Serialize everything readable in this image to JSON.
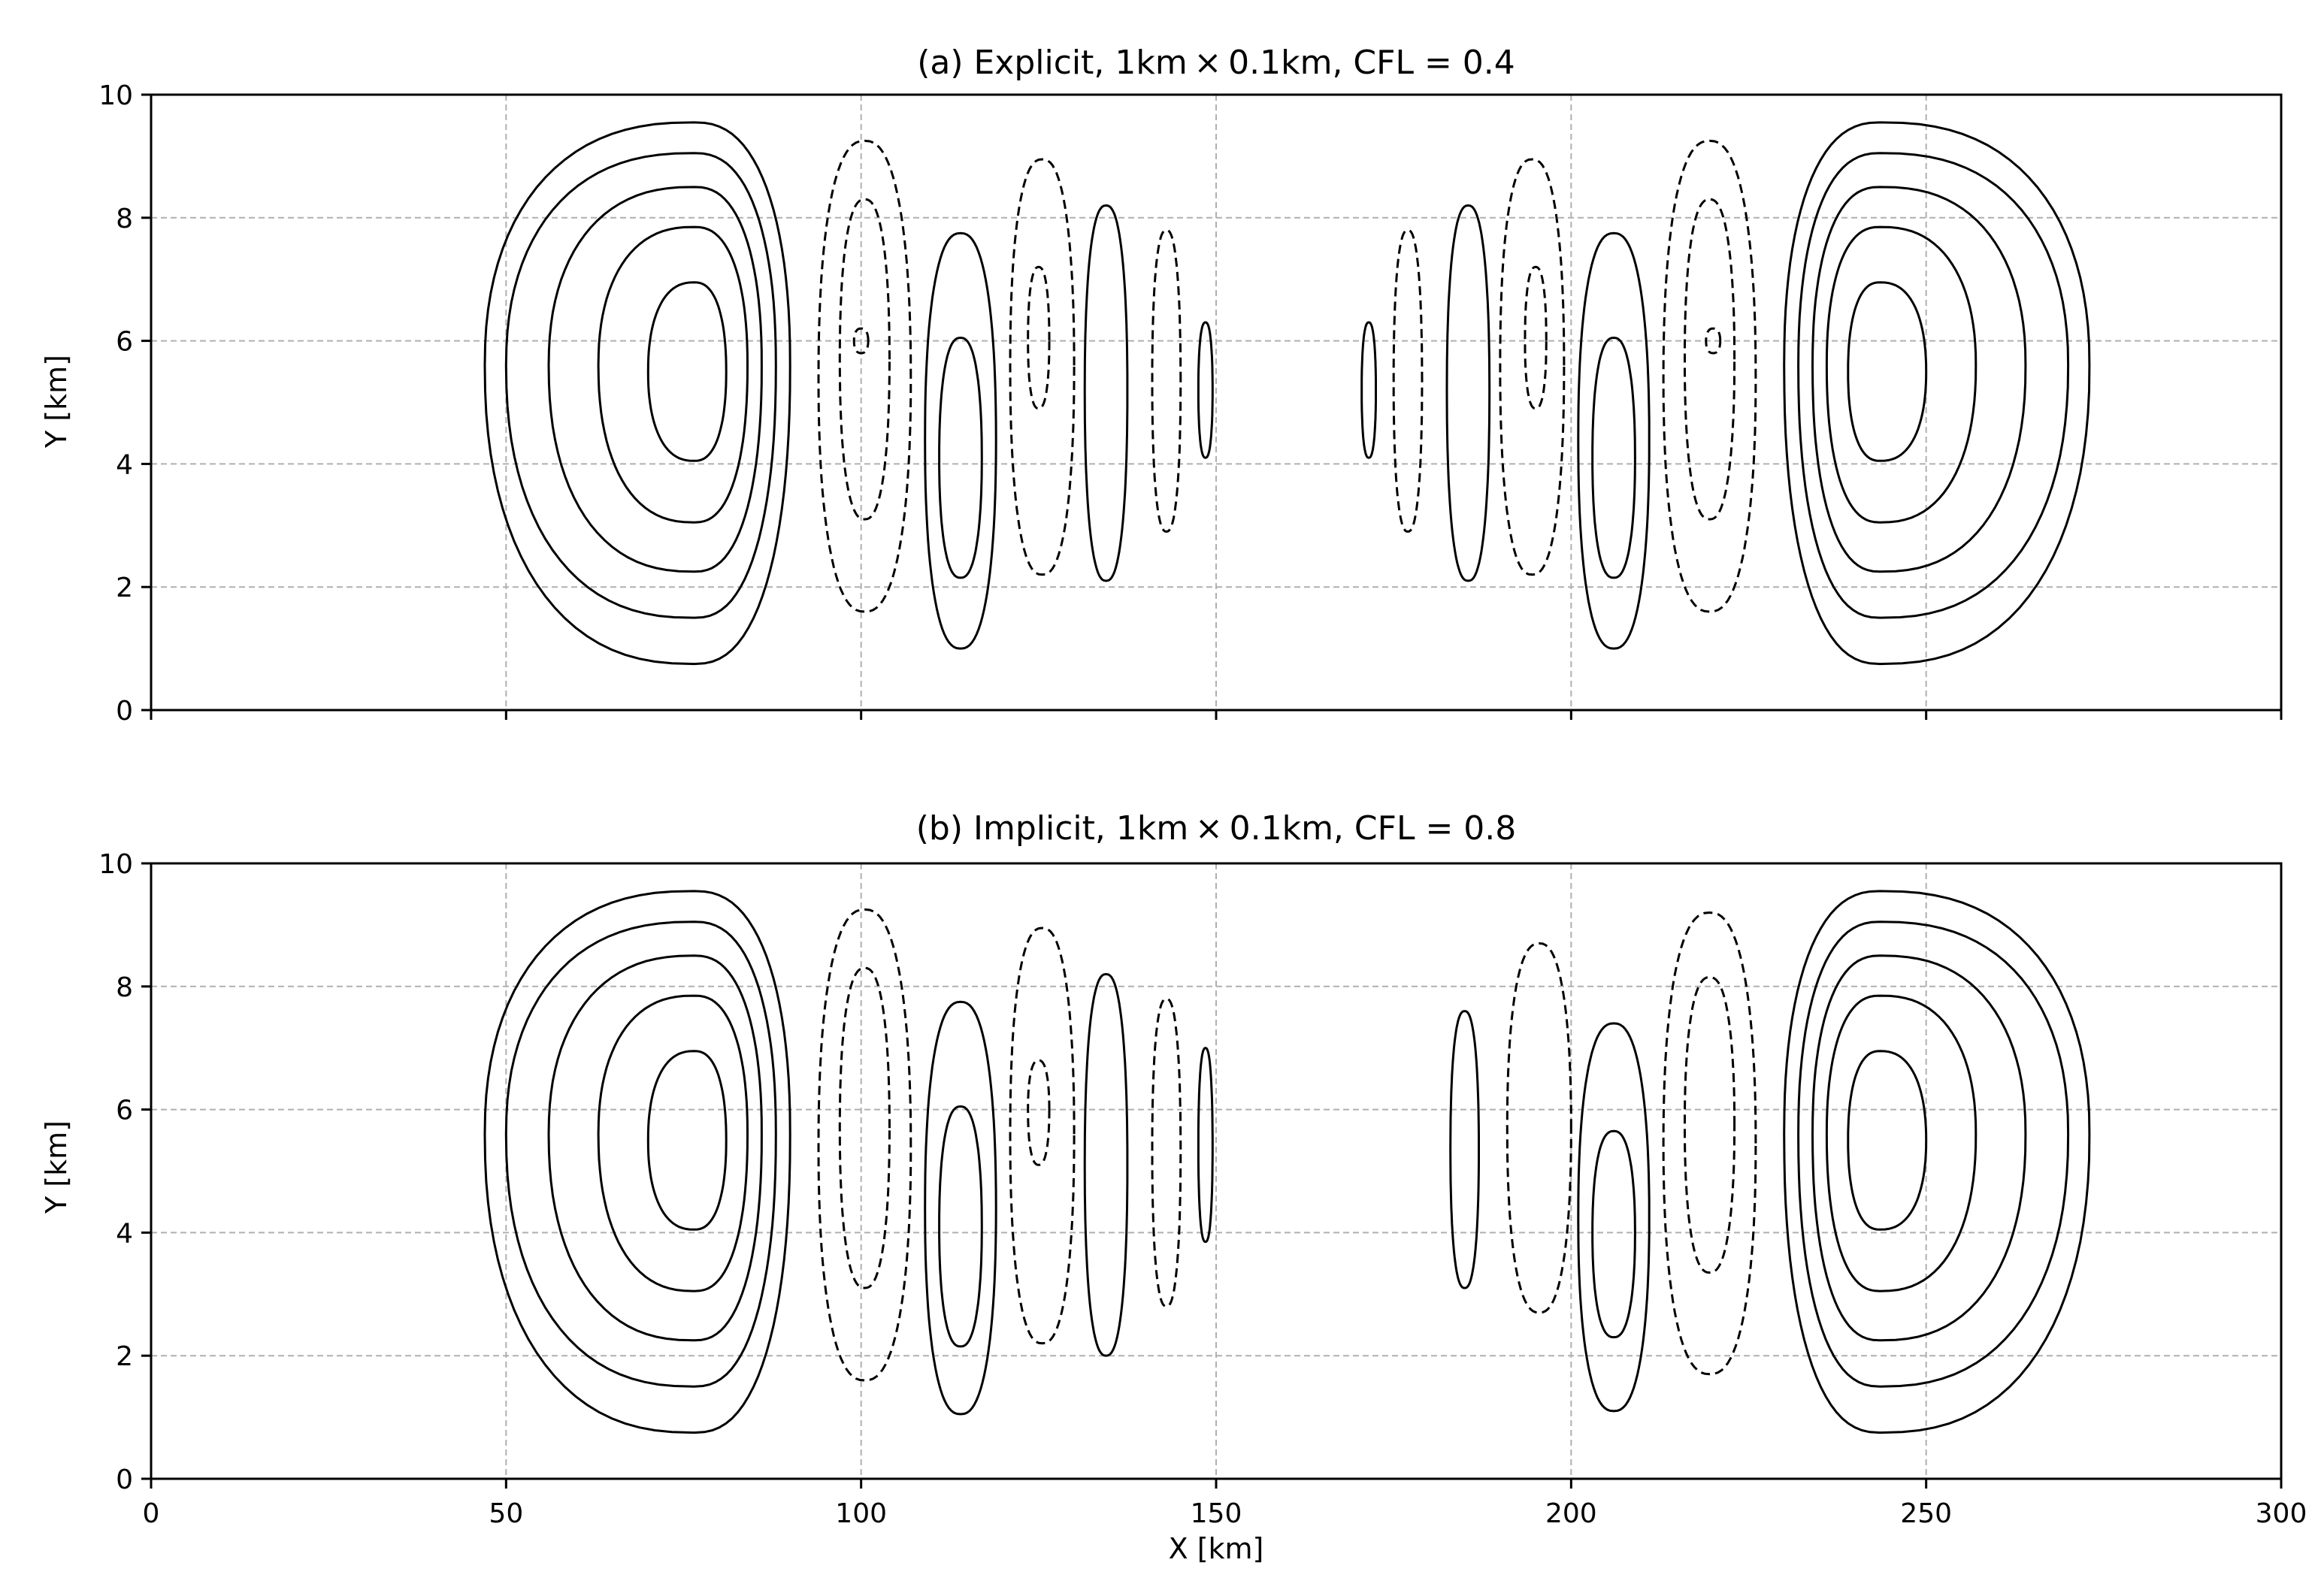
{
  "chart_data": [
    {
      "type": "contour",
      "title": "(a) Explicit, 1km × 0.1km, CFL = 0.4",
      "xlabel": "",
      "ylabel": "Y [km]",
      "xlim": [
        0,
        300
      ],
      "ylim": [
        0,
        10
      ],
      "xticks": [
        0,
        50,
        100,
        150,
        200,
        250,
        300
      ],
      "xticklabels_shown": false,
      "yticks": [
        0,
        2,
        4,
        6,
        8,
        10
      ],
      "grid": true,
      "contours": [
        {
          "sign": "positive",
          "x_center": 76.5,
          "y_center": 5.6,
          "x_range": [
            47,
            90
          ],
          "y_range": [
            0.75,
            9.55
          ]
        },
        {
          "sign": "positive",
          "x_center": 76.5,
          "y_center": 5.6,
          "x_range": [
            50,
            88
          ],
          "y_range": [
            1.5,
            9.05
          ]
        },
        {
          "sign": "positive",
          "x_center": 76.5,
          "y_center": 5.6,
          "x_range": [
            56,
            86
          ],
          "y_range": [
            2.25,
            8.5
          ]
        },
        {
          "sign": "positive",
          "x_center": 76.5,
          "y_center": 5.6,
          "x_range": [
            63,
            84
          ],
          "y_range": [
            3.05,
            7.85
          ]
        },
        {
          "sign": "positive",
          "x_center": 76.5,
          "y_center": 5.5,
          "x_range": [
            70,
            81
          ],
          "y_range": [
            4.05,
            6.95
          ]
        },
        {
          "sign": "negative",
          "x_center": 100.5,
          "y_center": 5.4,
          "x_range": [
            94,
            107
          ],
          "y_range": [
            1.6,
            9.25
          ]
        },
        {
          "sign": "negative",
          "x_center": 100.5,
          "y_center": 5.7,
          "x_range": [
            97,
            104
          ],
          "y_range": [
            3.1,
            8.3
          ]
        },
        {
          "sign": "negative",
          "x_center": 100,
          "y_center": 6.0,
          "x_range": [
            99,
            101
          ],
          "y_range": [
            5.8,
            6.2
          ]
        },
        {
          "sign": "positive",
          "x_center": 114,
          "y_center": 4.4,
          "x_range": [
            109,
            119
          ],
          "y_range": [
            1.0,
            7.75
          ]
        },
        {
          "sign": "positive",
          "x_center": 114,
          "y_center": 4.1,
          "x_range": [
            111,
            117
          ],
          "y_range": [
            2.15,
            6.05
          ]
        },
        {
          "sign": "negative",
          "x_center": 125.5,
          "y_center": 5.6,
          "x_range": [
            121,
            130
          ],
          "y_range": [
            2.2,
            8.95
          ]
        },
        {
          "sign": "negative",
          "x_center": 125,
          "y_center": 6.0,
          "x_range": [
            123.5,
            126.5
          ],
          "y_range": [
            4.9,
            7.2
          ]
        },
        {
          "sign": "positive",
          "x_center": 134.5,
          "y_center": 5.2,
          "x_range": [
            131.5,
            137.5
          ],
          "y_range": [
            2.1,
            8.2
          ]
        },
        {
          "sign": "negative",
          "x_center": 143,
          "y_center": 5.35,
          "x_range": [
            141,
            145
          ],
          "y_range": [
            2.9,
            7.8
          ]
        },
        {
          "sign": "positive",
          "x_center": 148.5,
          "y_center": 5.2,
          "x_range": [
            147.5,
            149.5
          ],
          "y_range": [
            4.1,
            6.3
          ]
        },
        {
          "sign": "positive",
          "x_center": 171.5,
          "y_center": 5.2,
          "x_range": [
            170.5,
            172.5
          ],
          "y_range": [
            4.1,
            6.3
          ]
        },
        {
          "sign": "negative",
          "x_center": 177,
          "y_center": 5.35,
          "x_range": [
            175,
            179
          ],
          "y_range": [
            2.9,
            7.8
          ]
        },
        {
          "sign": "positive",
          "x_center": 185.5,
          "y_center": 5.2,
          "x_range": [
            182.5,
            188.5
          ],
          "y_range": [
            2.1,
            8.2
          ]
        },
        {
          "sign": "negative",
          "x_center": 194.5,
          "y_center": 5.6,
          "x_range": [
            190,
            199
          ],
          "y_range": [
            2.2,
            8.95
          ]
        },
        {
          "sign": "negative",
          "x_center": 195,
          "y_center": 6.0,
          "x_range": [
            193.5,
            196.5
          ],
          "y_range": [
            4.9,
            7.2
          ]
        },
        {
          "sign": "positive",
          "x_center": 206,
          "y_center": 4.4,
          "x_range": [
            201,
            211
          ],
          "y_range": [
            1.0,
            7.75
          ]
        },
        {
          "sign": "positive",
          "x_center": 206,
          "y_center": 4.1,
          "x_range": [
            203,
            209
          ],
          "y_range": [
            2.15,
            6.05
          ]
        },
        {
          "sign": "negative",
          "x_center": 219.5,
          "y_center": 5.4,
          "x_range": [
            213,
            226
          ],
          "y_range": [
            1.6,
            9.25
          ]
        },
        {
          "sign": "negative",
          "x_center": 219.5,
          "y_center": 5.7,
          "x_range": [
            216,
            223
          ],
          "y_range": [
            3.1,
            8.3
          ]
        },
        {
          "sign": "negative",
          "x_center": 220,
          "y_center": 6.0,
          "x_range": [
            219,
            221
          ],
          "y_range": [
            5.8,
            6.2
          ]
        },
        {
          "sign": "positive",
          "x_center": 243.5,
          "y_center": 5.6,
          "x_range": [
            230,
            273
          ],
          "y_range": [
            0.75,
            9.55
          ]
        },
        {
          "sign": "positive",
          "x_center": 243.5,
          "y_center": 5.6,
          "x_range": [
            232,
            270
          ],
          "y_range": [
            1.5,
            9.05
          ]
        },
        {
          "sign": "positive",
          "x_center": 243.5,
          "y_center": 5.6,
          "x_range": [
            234,
            264
          ],
          "y_range": [
            2.25,
            8.5
          ]
        },
        {
          "sign": "positive",
          "x_center": 243.5,
          "y_center": 5.6,
          "x_range": [
            236,
            257
          ],
          "y_range": [
            3.05,
            7.85
          ]
        },
        {
          "sign": "positive",
          "x_center": 243.5,
          "y_center": 5.5,
          "x_range": [
            239,
            250
          ],
          "y_range": [
            4.05,
            6.95
          ]
        }
      ]
    },
    {
      "type": "contour",
      "title": "(b) Implicit, 1km × 0.1km, CFL = 0.8",
      "xlabel": "X [km]",
      "ylabel": "Y [km]",
      "xlim": [
        0,
        300
      ],
      "ylim": [
        0,
        10
      ],
      "xticks": [
        0,
        50,
        100,
        150,
        200,
        250,
        300
      ],
      "xticklabels_shown": true,
      "yticks": [
        0,
        2,
        4,
        6,
        8,
        10
      ],
      "grid": true,
      "contours": [
        {
          "sign": "positive",
          "x_center": 76.5,
          "y_center": 5.6,
          "x_range": [
            47,
            90
          ],
          "y_range": [
            0.75,
            9.55
          ]
        },
        {
          "sign": "positive",
          "x_center": 76.5,
          "y_center": 5.6,
          "x_range": [
            50,
            88
          ],
          "y_range": [
            1.5,
            9.05
          ]
        },
        {
          "sign": "positive",
          "x_center": 76.5,
          "y_center": 5.6,
          "x_range": [
            56,
            86
          ],
          "y_range": [
            2.25,
            8.5
          ]
        },
        {
          "sign": "positive",
          "x_center": 76.5,
          "y_center": 5.6,
          "x_range": [
            63,
            84
          ],
          "y_range": [
            3.05,
            7.85
          ]
        },
        {
          "sign": "positive",
          "x_center": 76.5,
          "y_center": 5.5,
          "x_range": [
            70,
            81
          ],
          "y_range": [
            4.05,
            6.95
          ]
        },
        {
          "sign": "negative",
          "x_center": 100.5,
          "y_center": 5.4,
          "x_range": [
            94,
            107
          ],
          "y_range": [
            1.6,
            9.25
          ]
        },
        {
          "sign": "negative",
          "x_center": 100.5,
          "y_center": 5.7,
          "x_range": [
            97,
            104
          ],
          "y_range": [
            3.1,
            8.3
          ]
        },
        {
          "sign": "positive",
          "x_center": 114,
          "y_center": 4.4,
          "x_range": [
            109,
            119
          ],
          "y_range": [
            1.05,
            7.75
          ]
        },
        {
          "sign": "positive",
          "x_center": 114,
          "y_center": 4.1,
          "x_range": [
            111,
            117
          ],
          "y_range": [
            2.15,
            6.05
          ]
        },
        {
          "sign": "negative",
          "x_center": 125.5,
          "y_center": 5.6,
          "x_range": [
            121,
            130
          ],
          "y_range": [
            2.2,
            8.95
          ]
        },
        {
          "sign": "negative",
          "x_center": 125,
          "y_center": 6.0,
          "x_range": [
            123.5,
            126.5
          ],
          "y_range": [
            5.1,
            6.8
          ]
        },
        {
          "sign": "positive",
          "x_center": 134.5,
          "y_center": 5.1,
          "x_range": [
            131.5,
            137.5
          ],
          "y_range": [
            2.0,
            8.2
          ]
        },
        {
          "sign": "negative",
          "x_center": 143,
          "y_center": 5.35,
          "x_range": [
            141,
            145
          ],
          "y_range": [
            2.8,
            7.8
          ]
        },
        {
          "sign": "positive",
          "x_center": 148.5,
          "y_center": 5.4,
          "x_range": [
            147.5,
            149.5
          ],
          "y_range": [
            3.85,
            7.0
          ]
        },
        {
          "sign": "positive",
          "x_center": 185,
          "y_center": 5.35,
          "x_range": [
            183,
            187
          ],
          "y_range": [
            3.1,
            7.6
          ]
        },
        {
          "sign": "negative",
          "x_center": 195.5,
          "y_center": 5.7,
          "x_range": [
            191,
            200
          ],
          "y_range": [
            2.7,
            8.7
          ]
        },
        {
          "sign": "positive",
          "x_center": 206,
          "y_center": 4.25,
          "x_range": [
            201,
            211
          ],
          "y_range": [
            1.1,
            7.4
          ]
        },
        {
          "sign": "positive",
          "x_center": 206,
          "y_center": 4.0,
          "x_range": [
            203,
            209
          ],
          "y_range": [
            2.3,
            5.65
          ]
        },
        {
          "sign": "negative",
          "x_center": 219.5,
          "y_center": 5.45,
          "x_range": [
            213,
            226
          ],
          "y_range": [
            1.7,
            9.2
          ]
        },
        {
          "sign": "negative",
          "x_center": 219.5,
          "y_center": 5.75,
          "x_range": [
            216,
            223
          ],
          "y_range": [
            3.35,
            8.15
          ]
        },
        {
          "sign": "positive",
          "x_center": 243.5,
          "y_center": 5.6,
          "x_range": [
            230,
            273
          ],
          "y_range": [
            0.75,
            9.55
          ]
        },
        {
          "sign": "positive",
          "x_center": 243.5,
          "y_center": 5.6,
          "x_range": [
            232,
            270
          ],
          "y_range": [
            1.5,
            9.05
          ]
        },
        {
          "sign": "positive",
          "x_center": 243.5,
          "y_center": 5.6,
          "x_range": [
            234,
            264
          ],
          "y_range": [
            2.25,
            8.5
          ]
        },
        {
          "sign": "positive",
          "x_center": 243.5,
          "y_center": 5.6,
          "x_range": [
            236,
            257
          ],
          "y_range": [
            3.05,
            7.85
          ]
        },
        {
          "sign": "positive",
          "x_center": 243.5,
          "y_center": 5.5,
          "x_range": [
            239,
            250
          ],
          "y_range": [
            4.05,
            6.95
          ]
        }
      ]
    }
  ]
}
